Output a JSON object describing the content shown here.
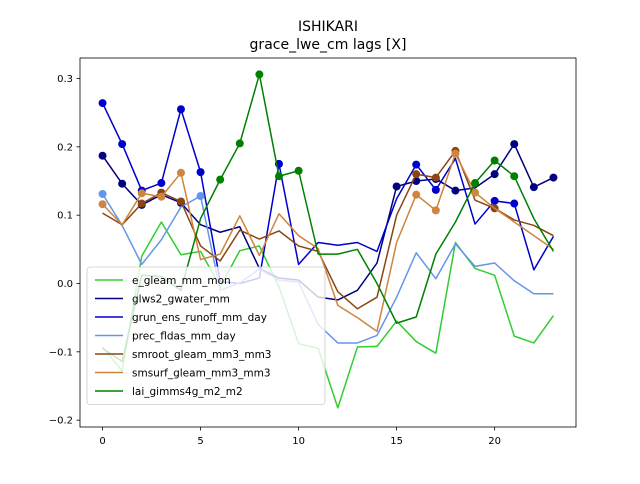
{
  "chart_data": {
    "type": "line",
    "title": "ISHIKARI",
    "subtitle": "grace_lwe_cm lags [X]",
    "xlabel": "",
    "ylabel": "",
    "xlim": [
      -1.15,
      24.15
    ],
    "ylim": [
      -0.21,
      0.33
    ],
    "xticks": [
      0,
      5,
      10,
      15,
      20
    ],
    "yticks": [
      -0.2,
      -0.1,
      0.0,
      0.1,
      0.2,
      0.3
    ],
    "ytick_labels": [
      "−0.2",
      "−0.1",
      "0.0",
      "0.1",
      "0.2",
      "0.3"
    ],
    "grid": false,
    "legend_position": "lower-left",
    "x": [
      0,
      1,
      2,
      3,
      4,
      5,
      6,
      7,
      8,
      9,
      10,
      11,
      12,
      13,
      14,
      15,
      16,
      17,
      18,
      19,
      20,
      21,
      22,
      23
    ],
    "series": [
      {
        "name": "e_gleam_mm_mon",
        "color": "#32cd32",
        "values": [
          -0.093,
          -0.128,
          0.04,
          0.09,
          0.042,
          0.047,
          -0.005,
          0.048,
          0.055,
          -0.005,
          -0.088,
          -0.095,
          -0.182,
          -0.093,
          -0.092,
          -0.055,
          -0.085,
          -0.102,
          0.06,
          0.022,
          0.012,
          -0.077,
          -0.087,
          -0.047
        ],
        "markers": []
      },
      {
        "name": "glws2_gwater_mm",
        "color": "#000080",
        "values": [
          0.187,
          0.146,
          0.115,
          0.13,
          0.118,
          0.086,
          0.075,
          0.083,
          0.022,
          0.008,
          0.005,
          -0.02,
          -0.024,
          -0.01,
          0.03,
          0.142,
          0.15,
          0.153,
          0.136,
          0.14,
          0.16,
          0.204,
          0.141,
          0.155
        ],
        "markers": [
          0,
          1,
          2,
          3,
          4,
          15,
          16,
          17,
          18,
          20,
          21,
          22,
          23
        ]
      },
      {
        "name": "grun_ens_runoff_mm_day",
        "color": "#0000cd",
        "values": [
          0.264,
          0.204,
          0.136,
          0.147,
          0.255,
          0.163,
          0.003,
          0.0,
          0.008,
          0.175,
          0.028,
          0.06,
          0.056,
          0.06,
          0.047,
          0.124,
          0.174,
          0.137,
          0.183,
          0.087,
          0.121,
          0.117,
          0.02,
          0.069
        ],
        "markers": [
          0,
          1,
          2,
          3,
          4,
          5,
          9,
          16,
          17,
          20,
          21
        ]
      },
      {
        "name": "prec_fldas_mm_day",
        "color": "#6495ed",
        "values": [
          0.131,
          0.085,
          0.028,
          0.064,
          0.112,
          0.128,
          -0.01,
          0.001,
          0.021,
          0.005,
          0.002,
          -0.06,
          -0.087,
          -0.087,
          -0.076,
          -0.02,
          0.045,
          0.007,
          0.058,
          0.025,
          0.03,
          0.004,
          -0.015,
          -0.015
        ],
        "markers": [
          0,
          5
        ]
      },
      {
        "name": "smroot_gleam_mm3_mm3",
        "color": "#8b4513",
        "values": [
          0.103,
          0.086,
          0.117,
          0.133,
          0.12,
          0.055,
          0.033,
          0.078,
          0.065,
          0.077,
          0.055,
          0.047,
          -0.012,
          -0.037,
          -0.02,
          0.1,
          0.16,
          0.155,
          0.194,
          0.122,
          0.11,
          0.093,
          0.085,
          0.07
        ],
        "markers": [
          2,
          3,
          4,
          16,
          17,
          18,
          20
        ]
      },
      {
        "name": "smsurf_gleam_mm3_mm3",
        "color": "#cd853f",
        "values": [
          0.116,
          0.086,
          0.132,
          0.127,
          0.162,
          0.035,
          0.043,
          0.099,
          0.041,
          0.102,
          0.07,
          0.051,
          -0.032,
          -0.05,
          -0.07,
          0.06,
          0.13,
          0.107,
          0.19,
          0.133,
          0.11,
          0.09,
          0.07,
          0.05
        ],
        "markers": [
          0,
          2,
          3,
          4,
          16,
          17,
          18,
          19
        ]
      },
      {
        "name": "lai_gimms4g_m2_m2",
        "color": "#008000",
        "values": [
          -0.095,
          -0.114,
          0.012,
          0.01,
          -0.01,
          0.095,
          0.152,
          0.205,
          0.306,
          0.157,
          0.165,
          0.043,
          0.043,
          0.05,
          0.0,
          -0.058,
          -0.049,
          0.043,
          0.09,
          0.147,
          0.18,
          0.157,
          0.095,
          0.047
        ],
        "markers": [
          6,
          7,
          8,
          9,
          10,
          19,
          20,
          21
        ]
      }
    ]
  }
}
